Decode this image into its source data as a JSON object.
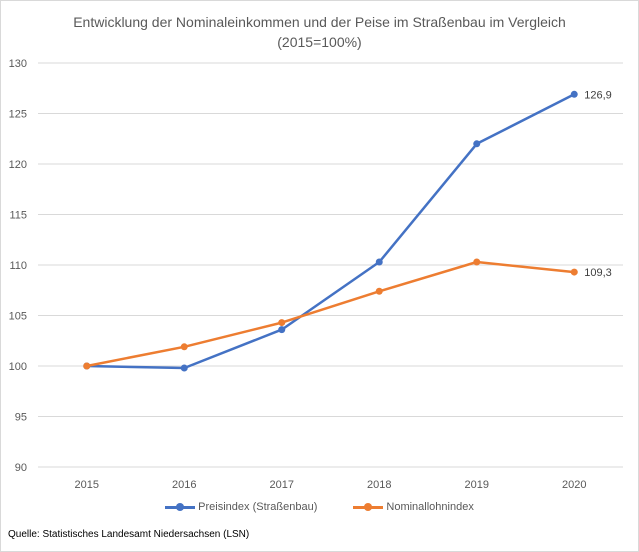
{
  "chart_data": {
    "type": "line",
    "title": "Entwicklung der Nominaleinkommen und der Peise im Straßenbau im Vergleich",
    "subtitle": "(2015=100%)",
    "categories": [
      "2015",
      "2016",
      "2017",
      "2018",
      "2019",
      "2020"
    ],
    "series": [
      {
        "name": "Preisindex (Straßenbau)",
        "color": "#4472c4",
        "values": [
          100,
          99.8,
          103.6,
          110.3,
          122.0,
          126.9
        ]
      },
      {
        "name": "Nominallohnindex",
        "color": "#ed7d31",
        "values": [
          100,
          101.9,
          104.3,
          107.4,
          110.3,
          109.3
        ]
      }
    ],
    "data_labels": [
      "126,9",
      "109,3"
    ],
    "y_ticks": [
      "90",
      "95",
      "100",
      "105",
      "110",
      "115",
      "120",
      "125",
      "130"
    ],
    "ylim": [
      90,
      130
    ],
    "grid": true,
    "legend_position": "bottom",
    "source": "Quelle: Statistisches Landesamt Niedersachsen (LSN)"
  }
}
